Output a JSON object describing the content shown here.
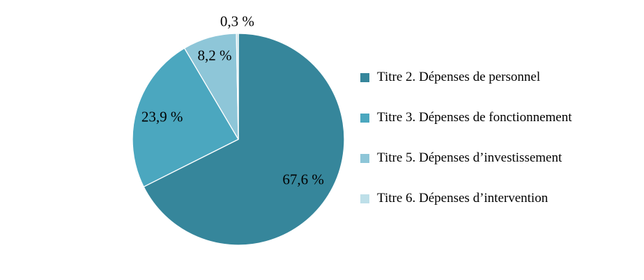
{
  "chart_data": {
    "type": "pie",
    "title": "",
    "unit": "%",
    "decimal_separator": ",",
    "start_angle_deg": 0,
    "direction": "clockwise",
    "legend_position": "right",
    "background_color": "#FFFFFF",
    "label_color": "#000000",
    "slice_border_color": "#FFFFFF",
    "slices": [
      {
        "name": "titre-2",
        "label": "Titre 2. Dépenses de personnel",
        "value": 67.6,
        "display": "67,6 %",
        "color": "#36869B"
      },
      {
        "name": "titre-3",
        "label": "Titre 3. Dépenses de fonctionnement",
        "value": 23.9,
        "display": "23,9 %",
        "color": "#4BA7BF"
      },
      {
        "name": "titre-5",
        "label": "Titre 5. Dépenses d’investissement",
        "value": 8.2,
        "display": "8,2 %",
        "color": "#8EC6D8"
      },
      {
        "name": "titre-6",
        "label": "Titre 6. Dépenses d’intervention",
        "value": 0.3,
        "display": "0,3 %",
        "color": "#BEDFE9"
      }
    ]
  }
}
